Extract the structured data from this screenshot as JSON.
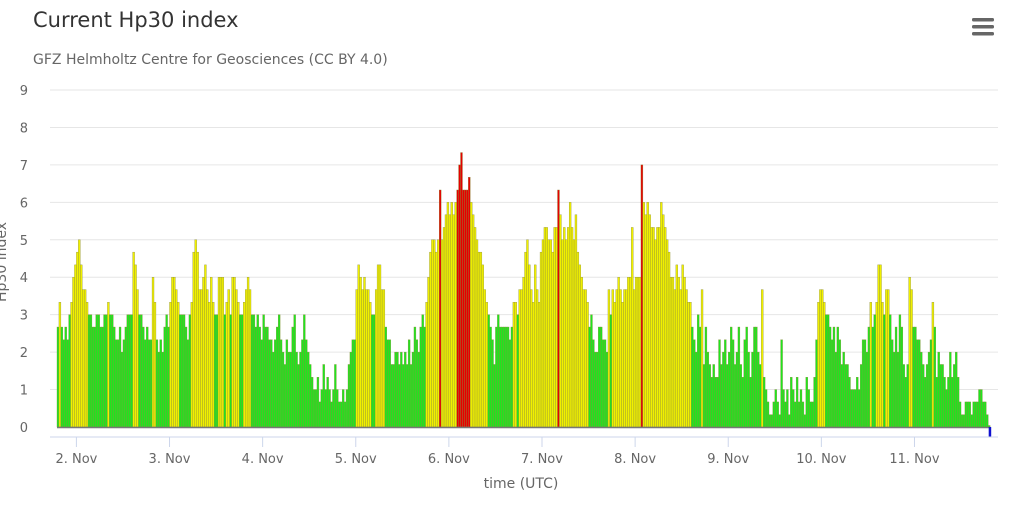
{
  "chart_data": {
    "type": "bar",
    "title": "Current Hp30 index",
    "subtitle": "GFZ Helmholtz Centre for Geosciences (CC BY 4.0)",
    "xlabel": "time (UTC)",
    "ylabel": "Hp30 index",
    "ylim": [
      0,
      9
    ],
    "yticks": [
      "0",
      "1",
      "2",
      "3",
      "4",
      "5",
      "6",
      "7",
      "8",
      "9"
    ],
    "xticks": [
      "2. Nov",
      "3. Nov",
      "4. Nov",
      "5. Nov",
      "6. Nov",
      "7. Nov",
      "8. Nov",
      "9. Nov",
      "10. Nov",
      "11. Nov"
    ],
    "start": "1. Nov 19:00",
    "interval_minutes": 30,
    "grid": true,
    "legend": "none",
    "colors": {
      "low": "#1ee61e",
      "moderate": "#f0f000",
      "high": "#e60000",
      "current": "#1010d0"
    },
    "values": [
      2.67,
      3.33,
      2.67,
      2.33,
      2.67,
      2.33,
      3,
      3.33,
      4,
      4.33,
      4.67,
      5,
      4.33,
      3.67,
      3.67,
      3.33,
      3,
      3,
      2.67,
      2.67,
      3,
      3,
      2.67,
      2.67,
      3,
      3,
      3.33,
      3,
      3,
      2.67,
      2.33,
      2.33,
      2.67,
      2,
      2.33,
      2.67,
      3,
      3,
      3,
      4.67,
      4.33,
      3.67,
      3,
      3,
      2.67,
      2.33,
      2.67,
      2.33,
      2.33,
      4,
      3.33,
      2.33,
      2,
      2.33,
      2,
      2.67,
      3,
      2.67,
      3.33,
      4,
      4,
      3.67,
      3.33,
      3,
      3,
      3,
      2.67,
      2.33,
      3,
      3.33,
      4.67,
      5,
      4.67,
      3.67,
      3.67,
      4,
      4.33,
      3.67,
      3.33,
      4,
      3.33,
      3,
      3,
      4,
      4,
      4,
      3,
      3.33,
      3.67,
      3,
      4,
      4,
      3.67,
      3.33,
      3,
      3,
      3.33,
      3.67,
      4,
      3.67,
      3,
      3,
      2.67,
      3,
      2.67,
      2.33,
      3,
      2.67,
      2.67,
      2.33,
      2.33,
      2,
      2.33,
      2.67,
      3,
      2.33,
      2,
      1.67,
      2.33,
      2,
      2,
      2.67,
      3,
      2,
      1.67,
      2,
      2.33,
      3,
      2.33,
      2,
      1.67,
      1.33,
      1,
      1,
      1.33,
      0.67,
      1,
      1.67,
      1,
      1.33,
      1,
      0.67,
      1,
      1.67,
      1,
      0.67,
      0.67,
      1,
      0.67,
      1,
      1.67,
      2,
      2.33,
      2.33,
      3.67,
      4.33,
      4,
      3.67,
      4,
      3.67,
      3.67,
      3.33,
      3,
      3,
      3.67,
      4.33,
      4.33,
      3.67,
      3.67,
      2.67,
      2.33,
      2.33,
      1.67,
      1.67,
      2,
      2,
      1.67,
      2,
      1.67,
      2,
      1.67,
      2.33,
      1.67,
      2,
      2.67,
      2.33,
      2,
      2.67,
      3,
      2.67,
      3.33,
      4,
      4.67,
      5,
      5,
      4.67,
      5,
      6.33,
      5,
      5.33,
      5.67,
      6,
      5.67,
      6,
      5.67,
      6,
      6.33,
      7,
      7.33,
      6.33,
      6.33,
      6.33,
      6.67,
      6,
      5.67,
      5.33,
      5,
      4.67,
      4.67,
      4.33,
      3.67,
      3.33,
      3,
      2.67,
      2.33,
      1.67,
      2.67,
      3,
      2.67,
      2.67,
      2.67,
      2.67,
      2.67,
      2.33,
      2.67,
      3.33,
      3.33,
      3,
      3.67,
      3.67,
      4,
      4.67,
      5,
      4.33,
      3.67,
      3.33,
      4.33,
      3.67,
      3.33,
      4.67,
      5,
      5.33,
      5.33,
      5,
      5,
      4.67,
      5.33,
      5.33,
      6.33,
      5.67,
      5,
      5.33,
      5,
      5.33,
      6,
      5.33,
      5,
      5.67,
      4.67,
      4.33,
      4,
      3.67,
      3.67,
      3.33,
      2.67,
      3,
      2.33,
      2,
      2,
      2.67,
      2.67,
      2.33,
      2.33,
      2,
      3.67,
      3,
      3.67,
      3.33,
      3.67,
      4,
      3.67,
      3.33,
      3.67,
      3.67,
      4,
      4,
      5.33,
      3.67,
      4,
      4,
      4,
      7,
      6,
      5.67,
      6,
      5.67,
      5.33,
      5.33,
      5,
      5.33,
      5.33,
      6,
      5.67,
      5.33,
      5,
      4.67,
      4,
      4,
      3.67,
      4.33,
      4,
      3.67,
      4.33,
      4,
      3.67,
      3.33,
      3.33,
      2.67,
      2.33,
      2,
      3,
      2.67,
      3.67,
      1.67,
      2.67,
      2,
      1.67,
      1.33,
      1.67,
      1.33,
      1.33,
      2.33,
      1.67,
      2,
      2.33,
      1.67,
      2,
      2.67,
      2.33,
      1.67,
      2,
      2.67,
      1.67,
      1.33,
      2.33,
      2.67,
      2,
      1.33,
      2,
      2.67,
      2.67,
      2,
      1.67,
      3.67,
      1.33,
      1,
      0.67,
      0.33,
      0.33,
      0.67,
      1,
      0.67,
      0.33,
      2.33,
      1,
      0.67,
      1,
      0.33,
      1.33,
      1,
      0.67,
      1.33,
      0.67,
      1,
      0.67,
      0.33,
      1.33,
      1,
      0.67,
      0.67,
      1.33,
      2.33,
      3.33,
      3.67,
      3.67,
      3.33,
      3,
      3,
      2.67,
      2.33,
      2.67,
      2,
      2.67,
      2.33,
      1.67,
      2,
      1.67,
      1.67,
      1.33,
      1,
      1,
      1,
      1.33,
      1,
      1.67,
      2.33,
      2.33,
      2,
      2.67,
      3.33,
      2.67,
      3,
      3.33,
      4.33,
      4.33,
      3.33,
      3,
      3.67,
      3.67,
      3,
      2.33,
      2,
      2.67,
      2,
      3,
      2.67,
      1.67,
      1.33,
      1.67,
      4,
      3.67,
      2.67,
      2.67,
      2.33,
      2.33,
      2,
      1.67,
      1.33,
      1.67,
      2,
      2.33,
      3.33,
      2.67,
      1.33,
      2,
      1.67,
      1.67,
      1.33,
      1,
      1.33,
      2,
      1.33,
      1.67,
      2,
      1.33,
      0.67,
      0.33,
      0.33,
      0.67,
      0.67,
      0.67,
      0.33,
      0.67,
      0.67,
      0.67,
      1,
      1,
      0.67,
      0.67,
      0.33,
      0
    ]
  },
  "menu": {
    "icon": "hamburger-menu-icon"
  }
}
